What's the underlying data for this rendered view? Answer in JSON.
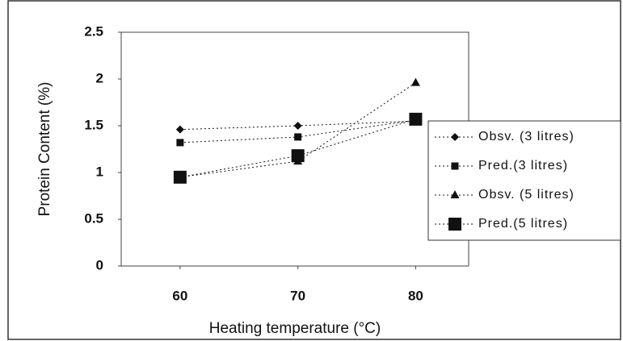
{
  "chart_data": {
    "type": "line",
    "x_label": "Heating temperature (°C)",
    "y_label": "Protein Content (%)",
    "x": [
      60,
      70,
      80
    ],
    "xlim": [
      55,
      84.5
    ],
    "xticks": [
      60,
      70,
      80
    ],
    "ylim": [
      0,
      2.5
    ],
    "yticks": [
      0,
      0.5,
      1,
      1.5,
      2,
      2.5
    ],
    "legend": "right",
    "series": [
      {
        "name": "Obsv. (3 litres)",
        "color": "#111111",
        "marker": "diamond",
        "values": [
          1.46,
          1.5,
          1.55
        ]
      },
      {
        "name": "Pred.(3 litres)",
        "color": "#111111",
        "marker": "square",
        "values": [
          1.32,
          1.38,
          1.56
        ]
      },
      {
        "name": "Obsv. (5 litres)",
        "color": "#111111",
        "marker": "triangle",
        "values": [
          0.95,
          1.12,
          1.96
        ]
      },
      {
        "name": "Pred.(5 litres)",
        "color": "#111111",
        "marker": "big-square",
        "values": [
          0.95,
          1.18,
          1.57
        ]
      }
    ]
  }
}
